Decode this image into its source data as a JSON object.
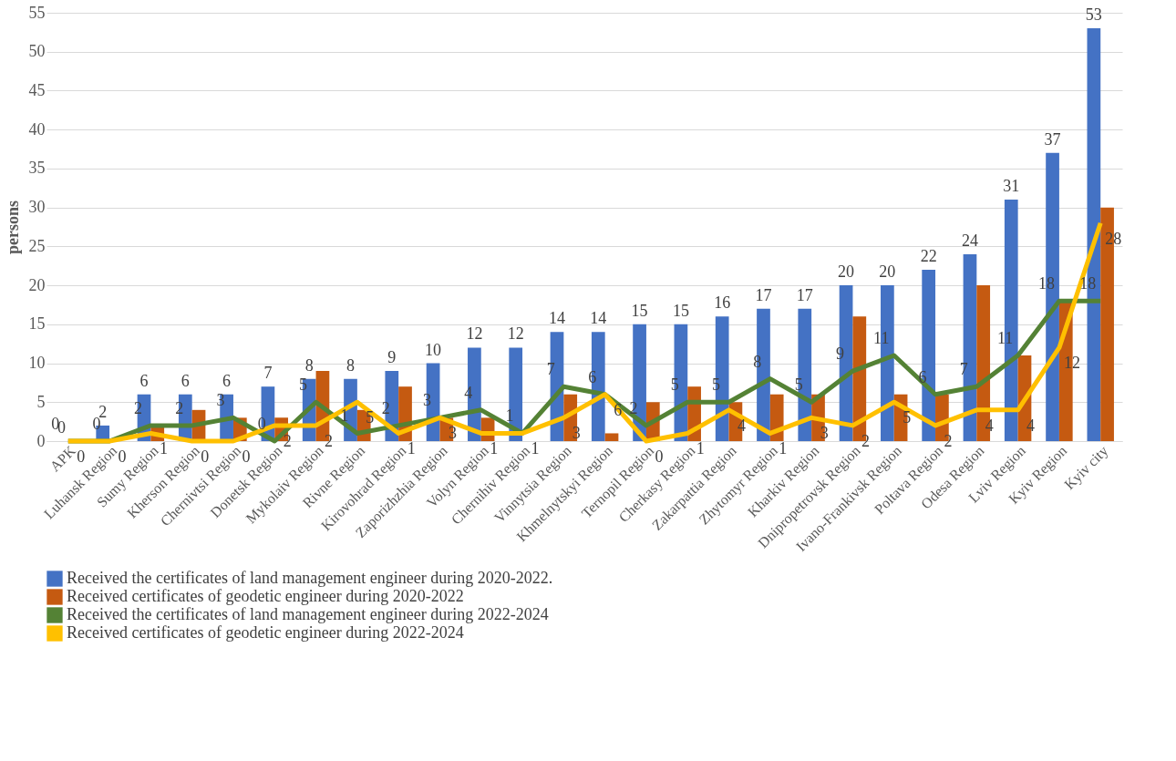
{
  "chart_data": {
    "type": "bar",
    "ylabel": "persons",
    "categories": [
      "APK",
      "Luhansk Region",
      "Sumy Region",
      "Kherson Region",
      "Chernivtsi Region",
      "Donetsk Region",
      "Mykolaiv Region",
      "Rivne Region",
      "Kirovohrad Region",
      "Zaporizhzhia Region",
      "Volyn Region",
      "Chernihiv Region",
      "Vinnytsia Region",
      "Khmelnytskyi Region",
      "Ternopil Region",
      "Cherkasy Region",
      "Zakarpattia Region",
      "Zhytomyr Region",
      "Kharkiv Region",
      "Dnipropetrovsk Region",
      "Ivano-Frankivsk Region",
      "Poltava Region",
      "Odesa Region",
      "Lviv Region",
      "Kyiv Region",
      "Kyiv city"
    ],
    "series": [
      {
        "name": "Received the certificates of land management engineer during 2020-2022.",
        "type": "bar",
        "color": "#4472c4",
        "values": [
          0,
          2,
          6,
          6,
          6,
          7,
          8,
          8,
          9,
          10,
          12,
          12,
          14,
          14,
          15,
          15,
          16,
          17,
          17,
          20,
          20,
          22,
          24,
          31,
          37,
          53
        ],
        "value_labels": [
          "0",
          "2",
          "6",
          "6",
          "6",
          "7",
          "8",
          "8",
          "9",
          "10",
          "12",
          "12",
          "14",
          "14",
          "15",
          "15",
          "16",
          "17",
          "17",
          "20",
          "20",
          "22",
          "24",
          "31",
          "37",
          "53"
        ]
      },
      {
        "name": "Received certificates of geodetic engineer during 2020-2022",
        "type": "bar",
        "color": "#c55a11",
        "values": [
          0,
          0,
          2,
          4,
          3,
          3,
          9,
          4,
          7,
          3,
          3,
          0,
          6,
          1,
          5,
          7,
          5,
          6,
          6,
          16,
          6,
          6,
          20,
          11,
          18,
          30
        ]
      },
      {
        "name": "Received the certificates of land management engineer during 2022-2024",
        "type": "line",
        "color": "#548235",
        "values": [
          0,
          0,
          2,
          2,
          3,
          0,
          5,
          1,
          2,
          3,
          4,
          1,
          7,
          6,
          2,
          5,
          5,
          8,
          5,
          9,
          11,
          6,
          7,
          11,
          18,
          18
        ],
        "value_labels": [
          "0",
          "0",
          "2",
          "2",
          "3",
          "0",
          "5",
          "1",
          "2",
          "3",
          "4",
          "1",
          "7",
          "6",
          "2",
          "5",
          "5",
          "8",
          "5",
          "9",
          "11",
          "6",
          "7",
          "11",
          "18",
          "18"
        ]
      },
      {
        "name": "Received certificates of geodetic engineer during  2022-2024",
        "type": "line",
        "color": "#ffc000",
        "values": [
          0,
          0,
          1,
          0,
          0,
          2,
          2,
          5,
          1,
          3,
          1,
          1,
          3,
          6,
          0,
          1,
          4,
          1,
          3,
          2,
          5,
          2,
          4,
          4,
          12,
          28
        ],
        "value_labels": [
          "0",
          "0",
          "1",
          "0",
          "0",
          "2",
          "2",
          "5",
          "1",
          "3",
          "1",
          "1",
          "3",
          "6",
          "0",
          "1",
          "4",
          "1",
          "3",
          "2",
          "5",
          "2",
          "4",
          "4",
          "12",
          "28"
        ]
      }
    ],
    "ylim": [
      0,
      55
    ],
    "yticks": [
      0,
      5,
      10,
      15,
      20,
      25,
      30,
      35,
      40,
      45,
      50,
      55
    ],
    "grid": "y",
    "legend": "bottom"
  }
}
